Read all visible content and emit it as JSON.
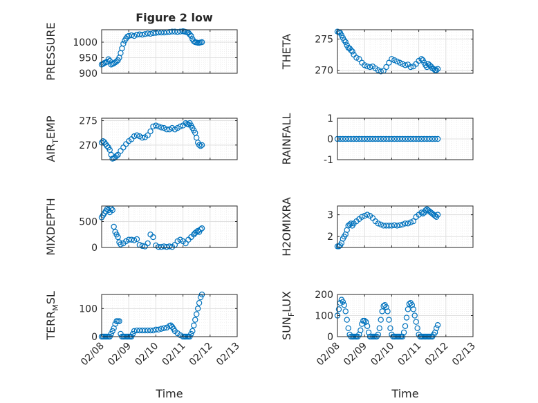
{
  "figure_title": "Figure 2 low",
  "colors": {
    "marker": "#0072BD",
    "axis": "#262626",
    "grid": "#dfdfdf",
    "minor_grid": "#ececec"
  },
  "chart_data": [
    {
      "type": "scatter",
      "ylabel": "PRESSURE",
      "ylim": [
        900,
        1040
      ],
      "yticks": [
        900,
        950,
        1000
      ],
      "xlim": [
        0,
        5
      ],
      "xticklabels_visible": false,
      "grid": true,
      "minor_grid": true,
      "x": [
        0.0,
        0.05,
        0.1,
        0.15,
        0.2,
        0.25,
        0.3,
        0.35,
        0.4,
        0.45,
        0.5,
        0.55,
        0.6,
        0.65,
        0.7,
        0.75,
        0.8,
        0.85,
        0.9,
        0.95,
        1.0,
        1.1,
        1.2,
        1.3,
        1.4,
        1.5,
        1.6,
        1.7,
        1.8,
        1.9,
        2.0,
        2.1,
        2.2,
        2.3,
        2.4,
        2.5,
        2.6,
        2.7,
        2.8,
        2.9,
        3.0,
        3.05,
        3.1,
        3.15,
        3.2,
        3.25,
        3.3,
        3.35,
        3.4,
        3.45,
        3.5,
        3.55,
        3.6,
        3.65,
        3.7
      ],
      "y": [
        928,
        930,
        933,
        935,
        937,
        945,
        940,
        928,
        930,
        932,
        935,
        938,
        942,
        950,
        965,
        980,
        995,
        1005,
        1012,
        1018,
        1020,
        1022,
        1020,
        1024,
        1025,
        1024,
        1026,
        1028,
        1027,
        1029,
        1030,
        1031,
        1031,
        1031,
        1032,
        1033,
        1034,
        1034,
        1033,
        1034,
        1035,
        1034,
        1033,
        1032,
        1030,
        1025,
        1020,
        1010,
        1003,
        1000,
        999,
        998,
        998,
        999,
        1000
      ]
    },
    {
      "type": "scatter",
      "ylabel": "THETA",
      "ylim": [
        269.5,
        276.5
      ],
      "yticks": [
        270,
        275
      ],
      "xlim": [
        0,
        5
      ],
      "xticklabels_visible": false,
      "grid": true,
      "minor_grid": true,
      "x": [
        0.0,
        0.05,
        0.1,
        0.15,
        0.2,
        0.25,
        0.3,
        0.35,
        0.4,
        0.45,
        0.5,
        0.55,
        0.6,
        0.7,
        0.8,
        0.9,
        1.0,
        1.1,
        1.2,
        1.3,
        1.4,
        1.5,
        1.6,
        1.7,
        1.8,
        1.9,
        2.0,
        2.1,
        2.2,
        2.3,
        2.4,
        2.5,
        2.6,
        2.7,
        2.8,
        2.9,
        3.0,
        3.1,
        3.15,
        3.2,
        3.25,
        3.3,
        3.35,
        3.4,
        3.45,
        3.5,
        3.55,
        3.6,
        3.65,
        3.7
      ],
      "y": [
        276.2,
        276.1,
        276.0,
        275.6,
        275.2,
        274.8,
        274.5,
        274.0,
        273.6,
        273.5,
        273.2,
        273.0,
        272.5,
        272.0,
        271.8,
        271.2,
        270.8,
        270.6,
        270.5,
        270.6,
        270.3,
        270.0,
        269.8,
        269.9,
        270.5,
        271.2,
        271.8,
        271.6,
        271.4,
        271.2,
        271.0,
        270.8,
        270.9,
        270.5,
        270.6,
        271.0,
        271.5,
        271.8,
        271.6,
        271.2,
        270.8,
        270.5,
        271.0,
        270.8,
        270.6,
        270.3,
        270.2,
        270.0,
        270.0,
        270.2
      ]
    },
    {
      "type": "scatter",
      "ylabel": "AIR_TEMP",
      "ylim": [
        267,
        275.5
      ],
      "yticks": [
        270,
        275
      ],
      "xlim": [
        0,
        5
      ],
      "xticklabels_visible": false,
      "grid": true,
      "minor_grid": true,
      "x": [
        0.0,
        0.05,
        0.1,
        0.15,
        0.2,
        0.25,
        0.3,
        0.35,
        0.4,
        0.45,
        0.5,
        0.55,
        0.6,
        0.7,
        0.8,
        0.9,
        1.0,
        1.1,
        1.2,
        1.3,
        1.4,
        1.5,
        1.6,
        1.7,
        1.8,
        1.9,
        2.0,
        2.1,
        2.2,
        2.3,
        2.4,
        2.5,
        2.6,
        2.7,
        2.8,
        2.9,
        3.0,
        3.1,
        3.15,
        3.2,
        3.25,
        3.3,
        3.35,
        3.4,
        3.45,
        3.5,
        3.55,
        3.6,
        3.65,
        3.7
      ],
      "y": [
        270.5,
        270.8,
        270.6,
        270.2,
        269.8,
        269.5,
        269.0,
        268.0,
        267.2,
        267.3,
        267.5,
        267.8,
        268.0,
        268.8,
        269.5,
        270.2,
        270.8,
        271.2,
        271.8,
        272.0,
        271.8,
        271.5,
        271.6,
        272.0,
        272.8,
        273.8,
        274.0,
        273.8,
        273.6,
        273.5,
        273.2,
        273.2,
        273.5,
        273.2,
        273.5,
        273.8,
        274.0,
        274.5,
        274.3,
        274.2,
        274.5,
        274.0,
        273.5,
        273.0,
        272.5,
        271.5,
        270.5,
        270.0,
        269.8,
        270.0
      ]
    },
    {
      "type": "scatter",
      "ylabel": "RAINFALL",
      "ylim": [
        -1,
        1
      ],
      "yticks": [
        -1,
        0,
        1
      ],
      "xlim": [
        0,
        5
      ],
      "xticklabels_visible": false,
      "grid": true,
      "minor_grid": true,
      "x": [
        0.0,
        0.1,
        0.2,
        0.3,
        0.4,
        0.5,
        0.6,
        0.7,
        0.8,
        0.9,
        1.0,
        1.1,
        1.2,
        1.3,
        1.4,
        1.5,
        1.6,
        1.7,
        1.8,
        1.9,
        2.0,
        2.1,
        2.2,
        2.3,
        2.4,
        2.5,
        2.6,
        2.7,
        2.8,
        2.9,
        3.0,
        3.1,
        3.2,
        3.3,
        3.4,
        3.5,
        3.6,
        3.7
      ],
      "y": [
        0,
        0,
        0,
        0,
        0,
        0,
        0,
        0,
        0,
        0,
        0,
        0,
        0,
        0,
        0,
        0,
        0,
        0,
        0,
        0,
        0,
        0,
        0,
        0,
        0,
        0,
        0,
        0,
        0,
        0,
        0,
        0,
        0,
        0,
        0,
        0,
        0,
        0
      ]
    },
    {
      "type": "scatter",
      "ylabel": "MIXDEPTH",
      "ylim": [
        0,
        800
      ],
      "yticks": [
        0,
        500
      ],
      "xlim": [
        0,
        5
      ],
      "xticklabels_visible": false,
      "grid": true,
      "minor_grid": true,
      "x": [
        0.0,
        0.05,
        0.1,
        0.15,
        0.2,
        0.25,
        0.3,
        0.35,
        0.4,
        0.45,
        0.5,
        0.55,
        0.6,
        0.65,
        0.7,
        0.8,
        0.9,
        1.0,
        1.1,
        1.2,
        1.3,
        1.4,
        1.5,
        1.6,
        1.7,
        1.8,
        1.9,
        2.0,
        2.1,
        2.2,
        2.3,
        2.4,
        2.5,
        2.6,
        2.7,
        2.8,
        2.9,
        3.0,
        3.1,
        3.2,
        3.3,
        3.4,
        3.45,
        3.5,
        3.55,
        3.6,
        3.65,
        3.7
      ],
      "y": [
        580,
        620,
        660,
        700,
        740,
        720,
        680,
        750,
        720,
        400,
        300,
        250,
        200,
        100,
        60,
        80,
        120,
        150,
        150,
        140,
        160,
        50,
        30,
        20,
        80,
        250,
        200,
        40,
        10,
        10,
        20,
        10,
        20,
        10,
        50,
        120,
        150,
        120,
        80,
        150,
        200,
        250,
        280,
        300,
        320,
        300,
        350,
        370
      ]
    },
    {
      "type": "scatter",
      "ylabel": "H2OMIXRA",
      "ylim": [
        1.5,
        3.4
      ],
      "yticks": [
        2,
        3
      ],
      "xlim": [
        0,
        5
      ],
      "xticklabels_visible": false,
      "grid": true,
      "minor_grid": true,
      "x": [
        0.0,
        0.05,
        0.1,
        0.15,
        0.2,
        0.25,
        0.3,
        0.35,
        0.4,
        0.45,
        0.5,
        0.55,
        0.6,
        0.7,
        0.8,
        0.9,
        1.0,
        1.1,
        1.2,
        1.3,
        1.4,
        1.5,
        1.6,
        1.7,
        1.8,
        1.9,
        2.0,
        2.1,
        2.2,
        2.3,
        2.4,
        2.5,
        2.6,
        2.7,
        2.8,
        2.9,
        3.0,
        3.1,
        3.15,
        3.2,
        3.25,
        3.3,
        3.35,
        3.4,
        3.45,
        3.5,
        3.55,
        3.6,
        3.65,
        3.7
      ],
      "y": [
        1.55,
        1.55,
        1.6,
        1.7,
        1.9,
        2.0,
        2.1,
        2.3,
        2.5,
        2.55,
        2.6,
        2.5,
        2.6,
        2.7,
        2.8,
        2.9,
        2.95,
        3.0,
        2.95,
        2.85,
        2.7,
        2.6,
        2.55,
        2.5,
        2.5,
        2.5,
        2.5,
        2.52,
        2.5,
        2.52,
        2.55,
        2.6,
        2.6,
        2.65,
        2.7,
        2.9,
        3.0,
        3.1,
        3.05,
        3.1,
        3.2,
        3.25,
        3.2,
        3.15,
        3.1,
        3.05,
        3.0,
        2.95,
        2.9,
        3.0
      ]
    },
    {
      "type": "scatter",
      "ylabel": "TERR_MSL",
      "ylim": [
        0,
        150
      ],
      "yticks": [
        0,
        100
      ],
      "xlim": [
        0,
        5
      ],
      "xticklabels": [
        "02/08",
        "02/09",
        "02/10",
        "02/11",
        "02/12",
        "02/13"
      ],
      "xlabel": "Time",
      "grid": true,
      "minor_grid": true,
      "x": [
        0.0,
        0.05,
        0.1,
        0.15,
        0.2,
        0.25,
        0.3,
        0.35,
        0.4,
        0.45,
        0.5,
        0.55,
        0.6,
        0.65,
        0.7,
        0.75,
        0.8,
        0.85,
        0.9,
        0.95,
        1.0,
        1.05,
        1.1,
        1.15,
        1.2,
        1.3,
        1.4,
        1.5,
        1.6,
        1.7,
        1.8,
        1.9,
        2.0,
        2.1,
        2.2,
        2.3,
        2.4,
        2.5,
        2.55,
        2.6,
        2.65,
        2.7,
        2.8,
        2.9,
        3.0,
        3.05,
        3.1,
        3.15,
        3.2,
        3.25,
        3.3,
        3.35,
        3.4,
        3.45,
        3.5,
        3.55,
        3.6,
        3.65,
        3.7
      ],
      "y": [
        0,
        0,
        0,
        0,
        0,
        0,
        0,
        10,
        20,
        30,
        45,
        55,
        55,
        55,
        10,
        0,
        0,
        0,
        0,
        0,
        0,
        0,
        0,
        10,
        20,
        22,
        22,
        22,
        22,
        22,
        22,
        22,
        25,
        25,
        28,
        30,
        32,
        38,
        40,
        35,
        28,
        20,
        12,
        5,
        0,
        0,
        0,
        0,
        0,
        0,
        10,
        20,
        40,
        60,
        80,
        100,
        120,
        140,
        150
      ]
    },
    {
      "type": "scatter",
      "ylabel": "SUN_FLUX",
      "ylim": [
        0,
        200
      ],
      "yticks": [
        0,
        100,
        200
      ],
      "xlim": [
        0,
        5
      ],
      "xticklabels": [
        "02/08",
        "02/09",
        "02/10",
        "02/11",
        "02/12",
        "02/13"
      ],
      "xlabel": "Time",
      "grid": true,
      "minor_grid": true,
      "x": [
        0.0,
        0.05,
        0.1,
        0.15,
        0.2,
        0.25,
        0.3,
        0.35,
        0.4,
        0.45,
        0.5,
        0.55,
        0.6,
        0.65,
        0.7,
        0.75,
        0.8,
        0.85,
        0.9,
        0.95,
        1.0,
        1.05,
        1.1,
        1.15,
        1.2,
        1.25,
        1.3,
        1.35,
        1.4,
        1.45,
        1.5,
        1.55,
        1.6,
        1.65,
        1.7,
        1.75,
        1.8,
        1.85,
        1.9,
        1.95,
        2.0,
        2.05,
        2.1,
        2.15,
        2.2,
        2.25,
        2.3,
        2.35,
        2.4,
        2.45,
        2.5,
        2.55,
        2.6,
        2.65,
        2.7,
        2.75,
        2.8,
        2.85,
        2.9,
        2.95,
        3.0,
        3.05,
        3.1,
        3.15,
        3.2,
        3.25,
        3.3,
        3.35,
        3.4,
        3.45,
        3.5,
        3.55,
        3.6,
        3.65,
        3.7
      ],
      "y": [
        100,
        130,
        160,
        175,
        165,
        150,
        120,
        80,
        40,
        10,
        0,
        0,
        0,
        0,
        0,
        0,
        10,
        30,
        60,
        75,
        75,
        70,
        50,
        20,
        0,
        0,
        0,
        0,
        0,
        0,
        10,
        40,
        80,
        120,
        145,
        150,
        140,
        120,
        80,
        40,
        10,
        0,
        0,
        0,
        0,
        0,
        0,
        0,
        0,
        20,
        50,
        90,
        130,
        155,
        160,
        150,
        130,
        100,
        70,
        40,
        10,
        0,
        0,
        0,
        0,
        0,
        0,
        0,
        0,
        0,
        0,
        10,
        20,
        40,
        55
      ]
    }
  ]
}
